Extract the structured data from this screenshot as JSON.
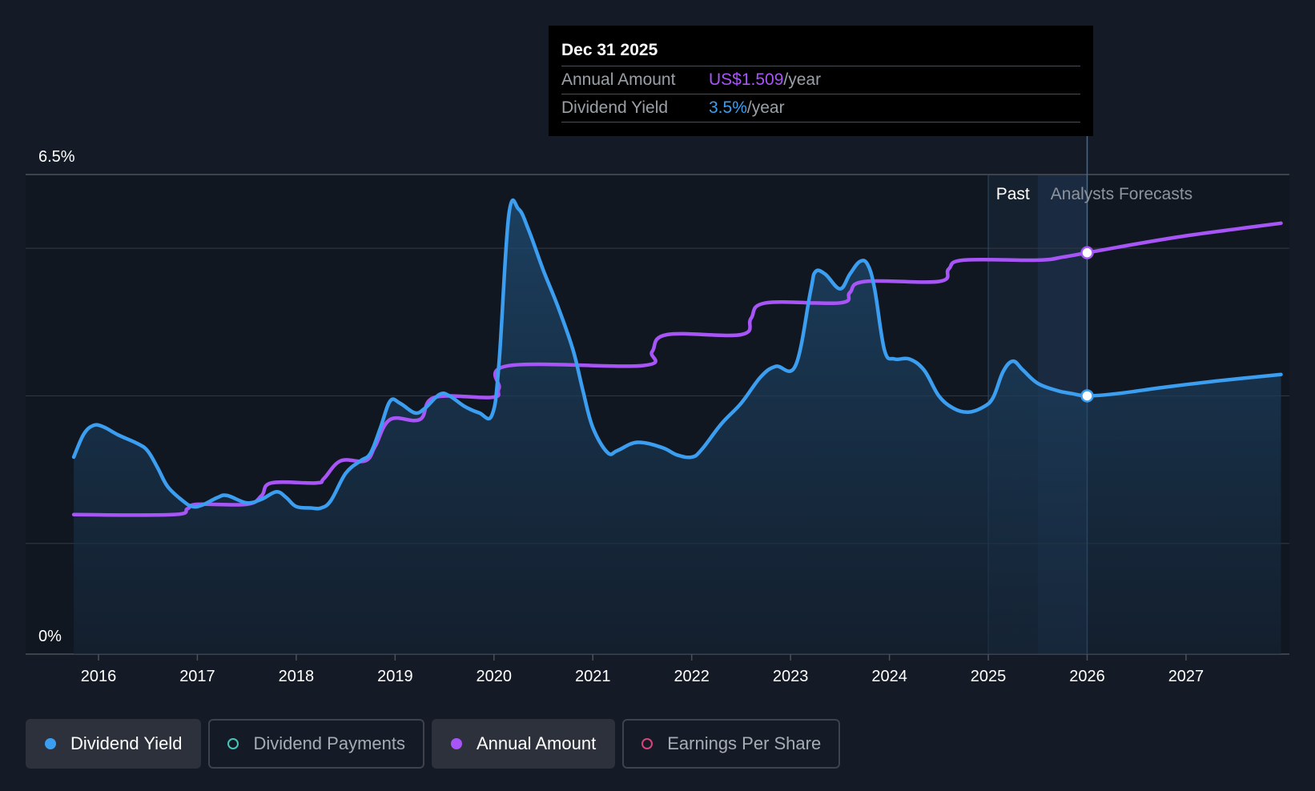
{
  "chart_data": {
    "type": "line",
    "y_axis": {
      "ticks": [
        "6.5%",
        "0%"
      ],
      "min": 0,
      "max": 6.5
    },
    "x_axis": {
      "ticks": [
        "2016",
        "2017",
        "2018",
        "2019",
        "2020",
        "2021",
        "2022",
        "2023",
        "2024",
        "2025",
        "2026",
        "2027"
      ],
      "min": 2015.49,
      "max": 2027.96
    },
    "regions": {
      "past_label": "Past",
      "forecast_label": "Analysts Forecasts",
      "past_start": 2025.0,
      "forecast_start": 2025.5,
      "cursor": 2026.0
    },
    "series": [
      {
        "name": "Dividend Yield",
        "color": "#3b9ef0",
        "filled": true,
        "points": [
          [
            2015.75,
            2.67
          ],
          [
            2015.85,
            2.98
          ],
          [
            2015.95,
            3.1
          ],
          [
            2016.05,
            3.08
          ],
          [
            2016.2,
            2.97
          ],
          [
            2016.4,
            2.85
          ],
          [
            2016.5,
            2.75
          ],
          [
            2016.6,
            2.52
          ],
          [
            2016.7,
            2.27
          ],
          [
            2016.85,
            2.08
          ],
          [
            2016.95,
            2.0
          ],
          [
            2017.05,
            2.02
          ],
          [
            2017.2,
            2.12
          ],
          [
            2017.3,
            2.15
          ],
          [
            2017.5,
            2.05
          ],
          [
            2017.65,
            2.1
          ],
          [
            2017.8,
            2.2
          ],
          [
            2017.9,
            2.12
          ],
          [
            2018.0,
            2.0
          ],
          [
            2018.15,
            1.98
          ],
          [
            2018.25,
            1.98
          ],
          [
            2018.35,
            2.08
          ],
          [
            2018.5,
            2.45
          ],
          [
            2018.65,
            2.62
          ],
          [
            2018.75,
            2.72
          ],
          [
            2018.85,
            3.06
          ],
          [
            2018.95,
            3.43
          ],
          [
            2019.05,
            3.4
          ],
          [
            2019.2,
            3.27
          ],
          [
            2019.3,
            3.33
          ],
          [
            2019.45,
            3.52
          ],
          [
            2019.55,
            3.5
          ],
          [
            2019.7,
            3.36
          ],
          [
            2019.85,
            3.27
          ],
          [
            2019.98,
            3.24
          ],
          [
            2020.05,
            3.93
          ],
          [
            2020.15,
            5.95
          ],
          [
            2020.25,
            6.03
          ],
          [
            2020.35,
            5.75
          ],
          [
            2020.5,
            5.2
          ],
          [
            2020.65,
            4.7
          ],
          [
            2020.8,
            4.12
          ],
          [
            2020.9,
            3.57
          ],
          [
            2021.0,
            3.07
          ],
          [
            2021.15,
            2.73
          ],
          [
            2021.25,
            2.76
          ],
          [
            2021.45,
            2.87
          ],
          [
            2021.7,
            2.8
          ],
          [
            2021.85,
            2.7
          ],
          [
            2022.0,
            2.67
          ],
          [
            2022.1,
            2.77
          ],
          [
            2022.3,
            3.12
          ],
          [
            2022.5,
            3.4
          ],
          [
            2022.7,
            3.76
          ],
          [
            2022.85,
            3.9
          ],
          [
            2023.05,
            3.91
          ],
          [
            2023.2,
            4.9
          ],
          [
            2023.25,
            5.18
          ],
          [
            2023.35,
            5.15
          ],
          [
            2023.5,
            4.95
          ],
          [
            2023.6,
            5.15
          ],
          [
            2023.7,
            5.32
          ],
          [
            2023.78,
            5.28
          ],
          [
            2023.85,
            4.95
          ],
          [
            2023.95,
            4.12
          ],
          [
            2024.05,
            4.0
          ],
          [
            2024.2,
            4.0
          ],
          [
            2024.35,
            3.85
          ],
          [
            2024.5,
            3.5
          ],
          [
            2024.65,
            3.33
          ],
          [
            2024.8,
            3.28
          ],
          [
            2024.95,
            3.35
          ],
          [
            2025.05,
            3.48
          ],
          [
            2025.15,
            3.83
          ],
          [
            2025.25,
            3.97
          ],
          [
            2025.35,
            3.85
          ],
          [
            2025.5,
            3.67
          ],
          [
            2025.7,
            3.57
          ],
          [
            2025.85,
            3.53
          ],
          [
            2026.0,
            3.5
          ],
          [
            2026.3,
            3.53
          ],
          [
            2026.8,
            3.62
          ],
          [
            2027.3,
            3.7
          ],
          [
            2027.96,
            3.79
          ]
        ]
      },
      {
        "name": "Annual Amount",
        "color": "#a855f7",
        "filled": false,
        "points": [
          [
            2015.75,
            1.89
          ],
          [
            2016.75,
            1.89
          ],
          [
            2016.9,
            1.97
          ],
          [
            2017.0,
            2.03
          ],
          [
            2017.5,
            2.03
          ],
          [
            2017.65,
            2.15
          ],
          [
            2017.75,
            2.32
          ],
          [
            2018.2,
            2.32
          ],
          [
            2018.28,
            2.38
          ],
          [
            2018.45,
            2.62
          ],
          [
            2018.7,
            2.62
          ],
          [
            2018.8,
            2.82
          ],
          [
            2018.95,
            3.18
          ],
          [
            2019.25,
            3.18
          ],
          [
            2019.4,
            3.48
          ],
          [
            2019.98,
            3.48
          ],
          [
            2020.05,
            3.6
          ],
          [
            2020.15,
            3.91
          ],
          [
            2021.5,
            3.91
          ],
          [
            2021.6,
            4.1
          ],
          [
            2021.75,
            4.33
          ],
          [
            2022.5,
            4.33
          ],
          [
            2022.6,
            4.55
          ],
          [
            2022.75,
            4.76
          ],
          [
            2023.5,
            4.76
          ],
          [
            2023.6,
            4.9
          ],
          [
            2023.75,
            5.05
          ],
          [
            2024.5,
            5.05
          ],
          [
            2024.6,
            5.22
          ],
          [
            2024.75,
            5.34
          ],
          [
            2025.5,
            5.34
          ],
          [
            2025.75,
            5.38
          ],
          [
            2026.0,
            5.44
          ],
          [
            2026.5,
            5.56
          ],
          [
            2027.0,
            5.67
          ],
          [
            2027.5,
            5.76
          ],
          [
            2027.96,
            5.84
          ]
        ]
      }
    ],
    "markers": [
      {
        "series": "Annual Amount",
        "x": 2026.0,
        "y": 5.44
      },
      {
        "series": "Dividend Yield",
        "x": 2026.0,
        "y": 3.5
      }
    ]
  },
  "tooltip": {
    "date": "Dec 31 2025",
    "rows": [
      {
        "label": "Annual Amount",
        "value": "US$1.509",
        "suffix": "/year",
        "color": "purple"
      },
      {
        "label": "Dividend Yield",
        "value": "3.5%",
        "suffix": "/year",
        "color": "blue"
      }
    ]
  },
  "legend": [
    {
      "label": "Dividend Yield",
      "active": true,
      "color": "#3b9ef0",
      "filled": true
    },
    {
      "label": "Dividend Payments",
      "active": false,
      "color": "#43c8b8",
      "filled": false
    },
    {
      "label": "Annual Amount",
      "active": true,
      "color": "#a855f7",
      "filled": true
    },
    {
      "label": "Earnings Per Share",
      "active": false,
      "color": "#d8447a",
      "filled": false
    }
  ]
}
